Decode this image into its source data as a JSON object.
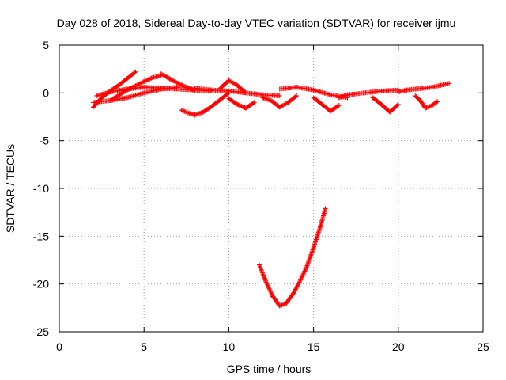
{
  "chart_data": {
    "type": "scatter",
    "title": "Day 028 of 2018, Sidereal Day-to-day VTEC variation (SDTVAR) for receiver ijmu",
    "xlabel": "GPS time / hours",
    "ylabel": "SDTVAR / TECUs",
    "xlim": [
      0,
      25
    ],
    "ylim": [
      -25,
      5
    ],
    "xticks": [
      0,
      5,
      10,
      15,
      20,
      25
    ],
    "xtick_labels": [
      "0",
      "5",
      "10",
      "15",
      "20",
      "25"
    ],
    "yticks": [
      5,
      0,
      -5,
      -10,
      -15,
      -20,
      -25
    ],
    "ytick_labels": [
      "5",
      "0",
      "-5",
      "-10",
      "-15",
      "-20",
      "-25"
    ],
    "grid": true,
    "marker": "+",
    "color": "#ff0000",
    "series": [
      {
        "name": "SDTVAR",
        "tracks": [
          {
            "x": [
              2.0,
              2.5,
              3.0,
              3.5,
              4.0,
              4.5
            ],
            "y": [
              -1.5,
              -0.5,
              0.2,
              0.8,
              1.5,
              2.2
            ]
          },
          {
            "x": [
              2.0,
              3.0,
              4.0,
              5.0,
              6.0,
              7.0
            ],
            "y": [
              -1.0,
              -0.8,
              -0.5,
              0.0,
              0.4,
              0.6
            ]
          },
          {
            "x": [
              2.2,
              3.0,
              4.0,
              5.0,
              6.0,
              7.0,
              8.0,
              9.0
            ],
            "y": [
              -0.3,
              0.1,
              0.4,
              0.6,
              0.5,
              0.4,
              0.3,
              0.2
            ]
          },
          {
            "x": [
              3.0,
              4.0,
              5.0,
              5.5,
              6.0
            ],
            "y": [
              -0.8,
              0.3,
              1.2,
              1.6,
              1.8
            ]
          },
          {
            "x": [
              6.0,
              6.5,
              7.0,
              7.5,
              8.0
            ],
            "y": [
              2.0,
              1.5,
              1.0,
              0.6,
              0.3
            ]
          },
          {
            "x": [
              7.2,
              7.6,
              8.0,
              8.5,
              9.0,
              9.5,
              10.0
            ],
            "y": [
              -1.8,
              -2.1,
              -2.3,
              -2.0,
              -1.4,
              -0.7,
              0.0
            ]
          },
          {
            "x": [
              8.0,
              9.0,
              10.0,
              11.0,
              12.0,
              13.0
            ],
            "y": [
              0.5,
              0.3,
              0.2,
              0.0,
              -0.2,
              -0.3
            ]
          },
          {
            "x": [
              9.5,
              10.0,
              10.5,
              11.0
            ],
            "y": [
              0.5,
              1.3,
              0.8,
              0.0
            ]
          },
          {
            "x": [
              10.0,
              10.5,
              11.0,
              11.5
            ],
            "y": [
              -0.6,
              -1.2,
              -1.6,
              -1.0
            ]
          },
          {
            "x": [
              12.0,
              12.5,
              13.0,
              13.5,
              14.0
            ],
            "y": [
              -0.5,
              -0.8,
              -1.5,
              -1.0,
              -0.3
            ]
          },
          {
            "x": [
              13.0,
              14.0,
              15.0,
              16.0,
              17.0
            ],
            "y": [
              0.4,
              0.6,
              0.3,
              -0.2,
              -0.5
            ]
          },
          {
            "x": [
              15.0,
              15.5,
              16.0,
              16.5
            ],
            "y": [
              -0.5,
              -1.2,
              -1.9,
              -1.3
            ]
          },
          {
            "x": [
              16.5,
              17.0,
              18.0,
              19.0,
              20.0
            ],
            "y": [
              -0.5,
              -0.2,
              0.0,
              0.2,
              0.3
            ]
          },
          {
            "x": [
              18.5,
              19.0,
              19.5,
              20.0
            ],
            "y": [
              -0.5,
              -1.2,
              -2.0,
              -1.2
            ]
          },
          {
            "x": [
              20.0,
              20.5,
              21.0,
              21.5,
              22.0,
              22.5,
              23.0
            ],
            "y": [
              0.1,
              0.3,
              0.4,
              0.5,
              0.6,
              0.8,
              1.0
            ]
          },
          {
            "x": [
              21.0,
              21.3,
              21.6,
              22.0,
              22.3
            ],
            "y": [
              -0.3,
              -0.8,
              -1.6,
              -1.3,
              -0.9
            ]
          },
          {
            "x": [
              11.8,
              12.2,
              12.6,
              13.0,
              13.4,
              13.8,
              14.2,
              14.6,
              15.0,
              15.4,
              15.7
            ],
            "y": [
              -18.0,
              -19.8,
              -21.3,
              -22.3,
              -22.0,
              -21.0,
              -19.7,
              -18.2,
              -16.2,
              -14.0,
              -12.1
            ]
          }
        ]
      }
    ]
  }
}
